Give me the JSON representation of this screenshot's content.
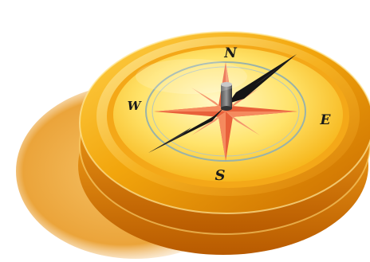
{
  "image": {
    "subject": "compass-illustration",
    "colors": {
      "body_gold": "#F2A50C",
      "body_dark": "#C86A00",
      "face_yellow": "#FFE36A",
      "face_light": "#FFF6B8",
      "rose_red": "#E8603A",
      "needle_black": "#151515",
      "shadow": "#E8A53A"
    },
    "cardinals": {
      "north": "N",
      "south": "S",
      "east": "E",
      "west": "W"
    }
  }
}
